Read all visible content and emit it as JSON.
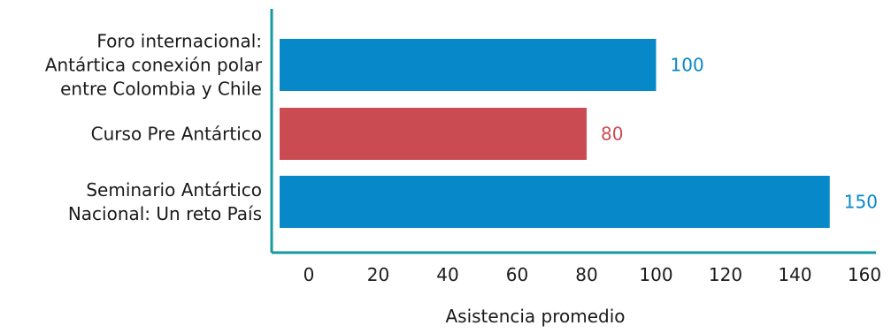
{
  "chart_data": {
    "type": "bar",
    "orientation": "horizontal",
    "categories": [
      [
        "Foro internacional:",
        "Antártica conexión polar",
        "entre Colombia y Chile"
      ],
      [
        "Curso Pre Antártico"
      ],
      [
        "Seminario Antártico",
        "Nacional: Un reto País"
      ]
    ],
    "values": [
      100,
      80,
      150
    ],
    "data_labels": [
      "100",
      "80",
      "150"
    ],
    "bar_colors": [
      "#0788c8",
      "#cb4b53",
      "#0788c8"
    ],
    "axis_color": "#159aa0",
    "xlabel": "Asistencia promedio",
    "ylabel": "",
    "title": "",
    "xlim": [
      0,
      160
    ],
    "xticks": [
      "0",
      "20",
      "40",
      "60",
      "80",
      "100",
      "120",
      "140",
      "160"
    ],
    "grid": false,
    "legend": "none"
  }
}
